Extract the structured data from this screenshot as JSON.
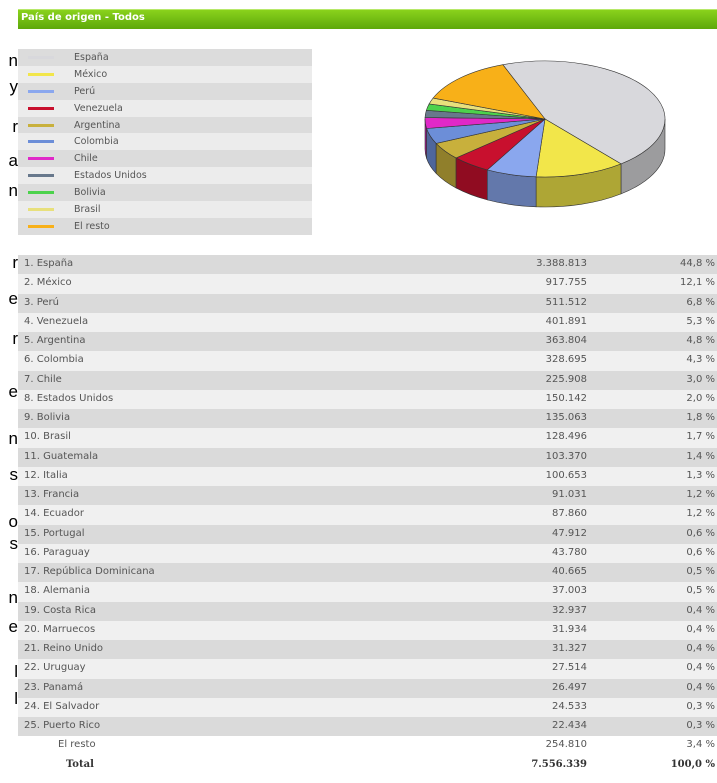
{
  "header": {
    "title": "País de origen - Todos"
  },
  "left_fragments": [
    "n",
    "y",
    "r",
    "a",
    "n",
    "r",
    "e",
    "r",
    "e",
    "n",
    "s",
    "o",
    "s",
    "n",
    "e",
    "l",
    "l"
  ],
  "chart_data": {
    "type": "pie",
    "title": "País de origen - Todos",
    "legend": [
      {
        "label": "España",
        "color": "#d8d8dc"
      },
      {
        "label": "México",
        "color": "#f2e64a"
      },
      {
        "label": "Perú",
        "color": "#8aa7ee"
      },
      {
        "label": "Venezuela",
        "color": "#c8102e"
      },
      {
        "label": "Argentina",
        "color": "#c8b03c"
      },
      {
        "label": "Colombia",
        "color": "#6c8ed8"
      },
      {
        "label": "Chile",
        "color": "#e028c8"
      },
      {
        "label": "Estados Unidos",
        "color": "#68788c"
      },
      {
        "label": "Bolivia",
        "color": "#4cd24c"
      },
      {
        "label": "Brasil",
        "color": "#e8e07c"
      },
      {
        "label": "El resto",
        "color": "#f8b018"
      }
    ],
    "slices": [
      {
        "label": "España",
        "value": 44.8
      },
      {
        "label": "México",
        "value": 12.1
      },
      {
        "label": "Perú",
        "value": 6.8
      },
      {
        "label": "Venezuela",
        "value": 5.3
      },
      {
        "label": "Argentina",
        "value": 4.8
      },
      {
        "label": "Colombia",
        "value": 4.3
      },
      {
        "label": "Chile",
        "value": 3.0
      },
      {
        "label": "Estados Unidos",
        "value": 2.0
      },
      {
        "label": "Bolivia",
        "value": 1.8
      },
      {
        "label": "Brasil",
        "value": 1.7
      },
      {
        "label": "El resto",
        "value": 13.4
      }
    ]
  },
  "table": {
    "rows": [
      {
        "name": "1. España",
        "value": "3.388.813",
        "pct": "44,8 %"
      },
      {
        "name": "2. México",
        "value": "917.755",
        "pct": "12,1 %"
      },
      {
        "name": "3. Perú",
        "value": "511.512",
        "pct": "6,8 %"
      },
      {
        "name": "4. Venezuela",
        "value": "401.891",
        "pct": "5,3 %"
      },
      {
        "name": "5. Argentina",
        "value": "363.804",
        "pct": "4,8 %"
      },
      {
        "name": "6. Colombia",
        "value": "328.695",
        "pct": "4,3 %"
      },
      {
        "name": "7. Chile",
        "value": "225.908",
        "pct": "3,0 %"
      },
      {
        "name": "8. Estados Unidos",
        "value": "150.142",
        "pct": "2,0 %"
      },
      {
        "name": "9. Bolivia",
        "value": "135.063",
        "pct": "1,8 %"
      },
      {
        "name": "10. Brasil",
        "value": "128.496",
        "pct": "1,7 %"
      },
      {
        "name": "11. Guatemala",
        "value": "103.370",
        "pct": "1,4 %"
      },
      {
        "name": "12. Italia",
        "value": "100.653",
        "pct": "1,3 %"
      },
      {
        "name": "13. Francia",
        "value": "91.031",
        "pct": "1,2 %"
      },
      {
        "name": "14. Ecuador",
        "value": "87.860",
        "pct": "1,2 %"
      },
      {
        "name": "15. Portugal",
        "value": "47.912",
        "pct": "0,6 %"
      },
      {
        "name": "16. Paraguay",
        "value": "43.780",
        "pct": "0,6 %"
      },
      {
        "name": "17. República Dominicana",
        "value": "40.665",
        "pct": "0,5 %"
      },
      {
        "name": "18. Alemania",
        "value": "37.003",
        "pct": "0,5 %"
      },
      {
        "name": "19. Costa Rica",
        "value": "32.937",
        "pct": "0,4 %"
      },
      {
        "name": "20. Marruecos",
        "value": "31.934",
        "pct": "0,4 %"
      },
      {
        "name": "21. Reino Unido",
        "value": "31.327",
        "pct": "0,4 %"
      },
      {
        "name": "22. Uruguay",
        "value": "27.514",
        "pct": "0,4 %"
      },
      {
        "name": "23. Panamá",
        "value": "26.497",
        "pct": "0,4 %"
      },
      {
        "name": "24. El Salvador",
        "value": "24.533",
        "pct": "0,3 %"
      },
      {
        "name": "25. Puerto Rico",
        "value": "22.434",
        "pct": "0,3 %"
      }
    ],
    "rest": {
      "name": "El resto",
      "value": "254.810",
      "pct": "3,4 %"
    },
    "total": {
      "name": "Total",
      "value": "7.556.339",
      "pct": "100,0 %"
    }
  }
}
